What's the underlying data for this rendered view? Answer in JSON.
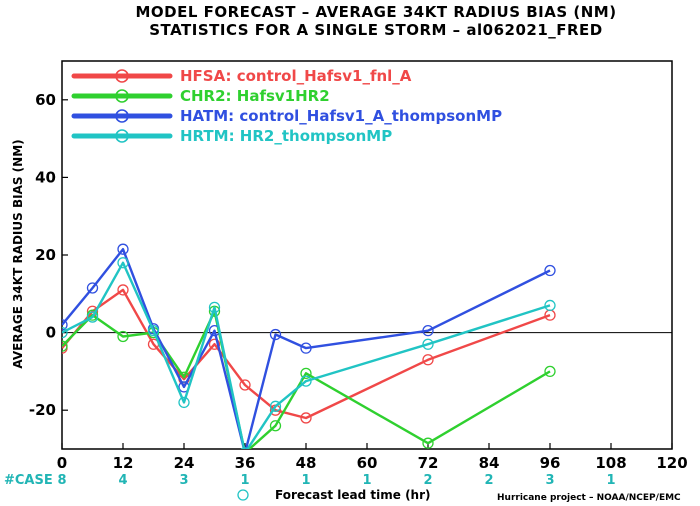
{
  "chart_data": {
    "type": "line",
    "title_line1": "MODEL FORECAST – AVERAGE 34KT RADIUS BIAS (NM)",
    "title_line2": "STATISTICS FOR A SINGLE STORM – al062021_FRED",
    "ylabel": "AVERAGE 34KT RADIUS BIAS (NM)",
    "xlabel": "Forecast lead time (hr)",
    "credit": "Hurricane project – NOAA/NCEP/EMC",
    "xlim": [
      0,
      120
    ],
    "ylim": [
      -30,
      70
    ],
    "xticks": [
      0,
      12,
      24,
      36,
      48,
      60,
      72,
      84,
      96,
      108,
      120
    ],
    "yticks": [
      -20,
      0,
      20,
      40,
      60
    ],
    "grid": false,
    "legend_position": "top-left",
    "case_label": "#CASE",
    "cases": [
      {
        "x": 0,
        "n": "8"
      },
      {
        "x": 12,
        "n": "4"
      },
      {
        "x": 24,
        "n": "3"
      },
      {
        "x": 36,
        "n": "1"
      },
      {
        "x": 48,
        "n": "1"
      },
      {
        "x": 60,
        "n": "1"
      },
      {
        "x": 72,
        "n": "2"
      },
      {
        "x": 84,
        "n": "2"
      },
      {
        "x": 96,
        "n": "3"
      },
      {
        "x": 108,
        "n": "1"
      }
    ],
    "series": [
      {
        "key": "HFSA",
        "name": "HFSA:  control_Hafsv1_fnl_A",
        "color": "#f04848",
        "x": [
          0,
          6,
          12,
          18,
          24,
          30,
          36,
          42,
          48,
          72,
          96
        ],
        "y": [
          -4,
          5.5,
          11,
          -3,
          -12,
          -3,
          -13.5,
          -20,
          -22,
          -7,
          4.5
        ]
      },
      {
        "key": "CHR2",
        "name": "CHR2:  Hafsv1HR2",
        "color": "#2fd02f",
        "x": [
          0,
          6,
          12,
          18,
          24,
          30,
          36,
          42,
          48,
          72,
          96
        ],
        "y": [
          -3.5,
          4.5,
          -1,
          0,
          -11.5,
          5.5,
          -31,
          -24,
          -10.5,
          -28.5,
          -10
        ]
      },
      {
        "key": "HATM",
        "name": "HATM:  control_Hafsv1_A_thompsonMP",
        "color": "#3050e0",
        "x": [
          0,
          6,
          12,
          18,
          24,
          30,
          36,
          42,
          48,
          72,
          96
        ],
        "y": [
          2,
          11.5,
          21.5,
          1,
          -14,
          0.5,
          -31,
          -0.5,
          -4,
          0.5,
          16
        ]
      },
      {
        "key": "HRTM",
        "name": "HRTM:  HR2_thompsonMP",
        "color": "#21c4c4",
        "x": [
          0,
          6,
          12,
          18,
          24,
          30,
          36,
          42,
          48,
          72,
          96
        ],
        "y": [
          0,
          4,
          18,
          0.5,
          -18,
          6.5,
          -31,
          -19,
          -12.5,
          -3,
          7
        ]
      }
    ]
  }
}
